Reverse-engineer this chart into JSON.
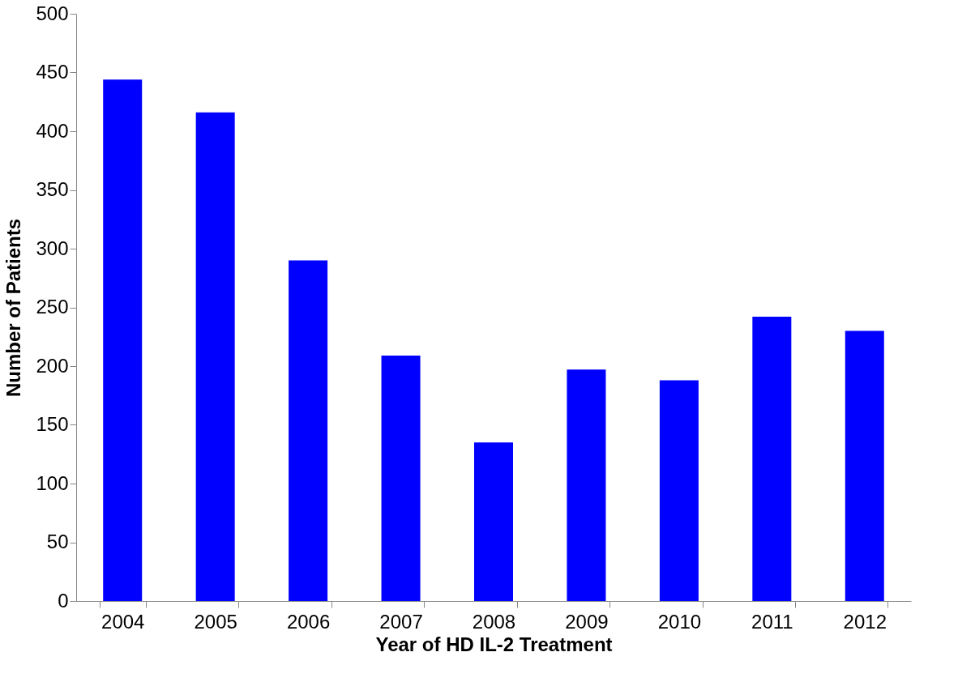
{
  "chart_data": {
    "type": "bar",
    "xlabel": "Year of HD IL-2 Treatment",
    "ylabel": "Number of Patients",
    "categories": [
      "2004",
      "2005",
      "2006",
      "2007",
      "2008",
      "2009",
      "2010",
      "2011",
      "2012"
    ],
    "values": [
      444,
      416,
      290,
      209,
      135,
      197,
      188,
      242,
      230
    ],
    "color": "#0000ff",
    "ylim": [
      0,
      500
    ],
    "yticks": [
      0,
      50,
      100,
      150,
      200,
      250,
      300,
      350,
      400,
      450,
      500
    ],
    "grid": false
  }
}
